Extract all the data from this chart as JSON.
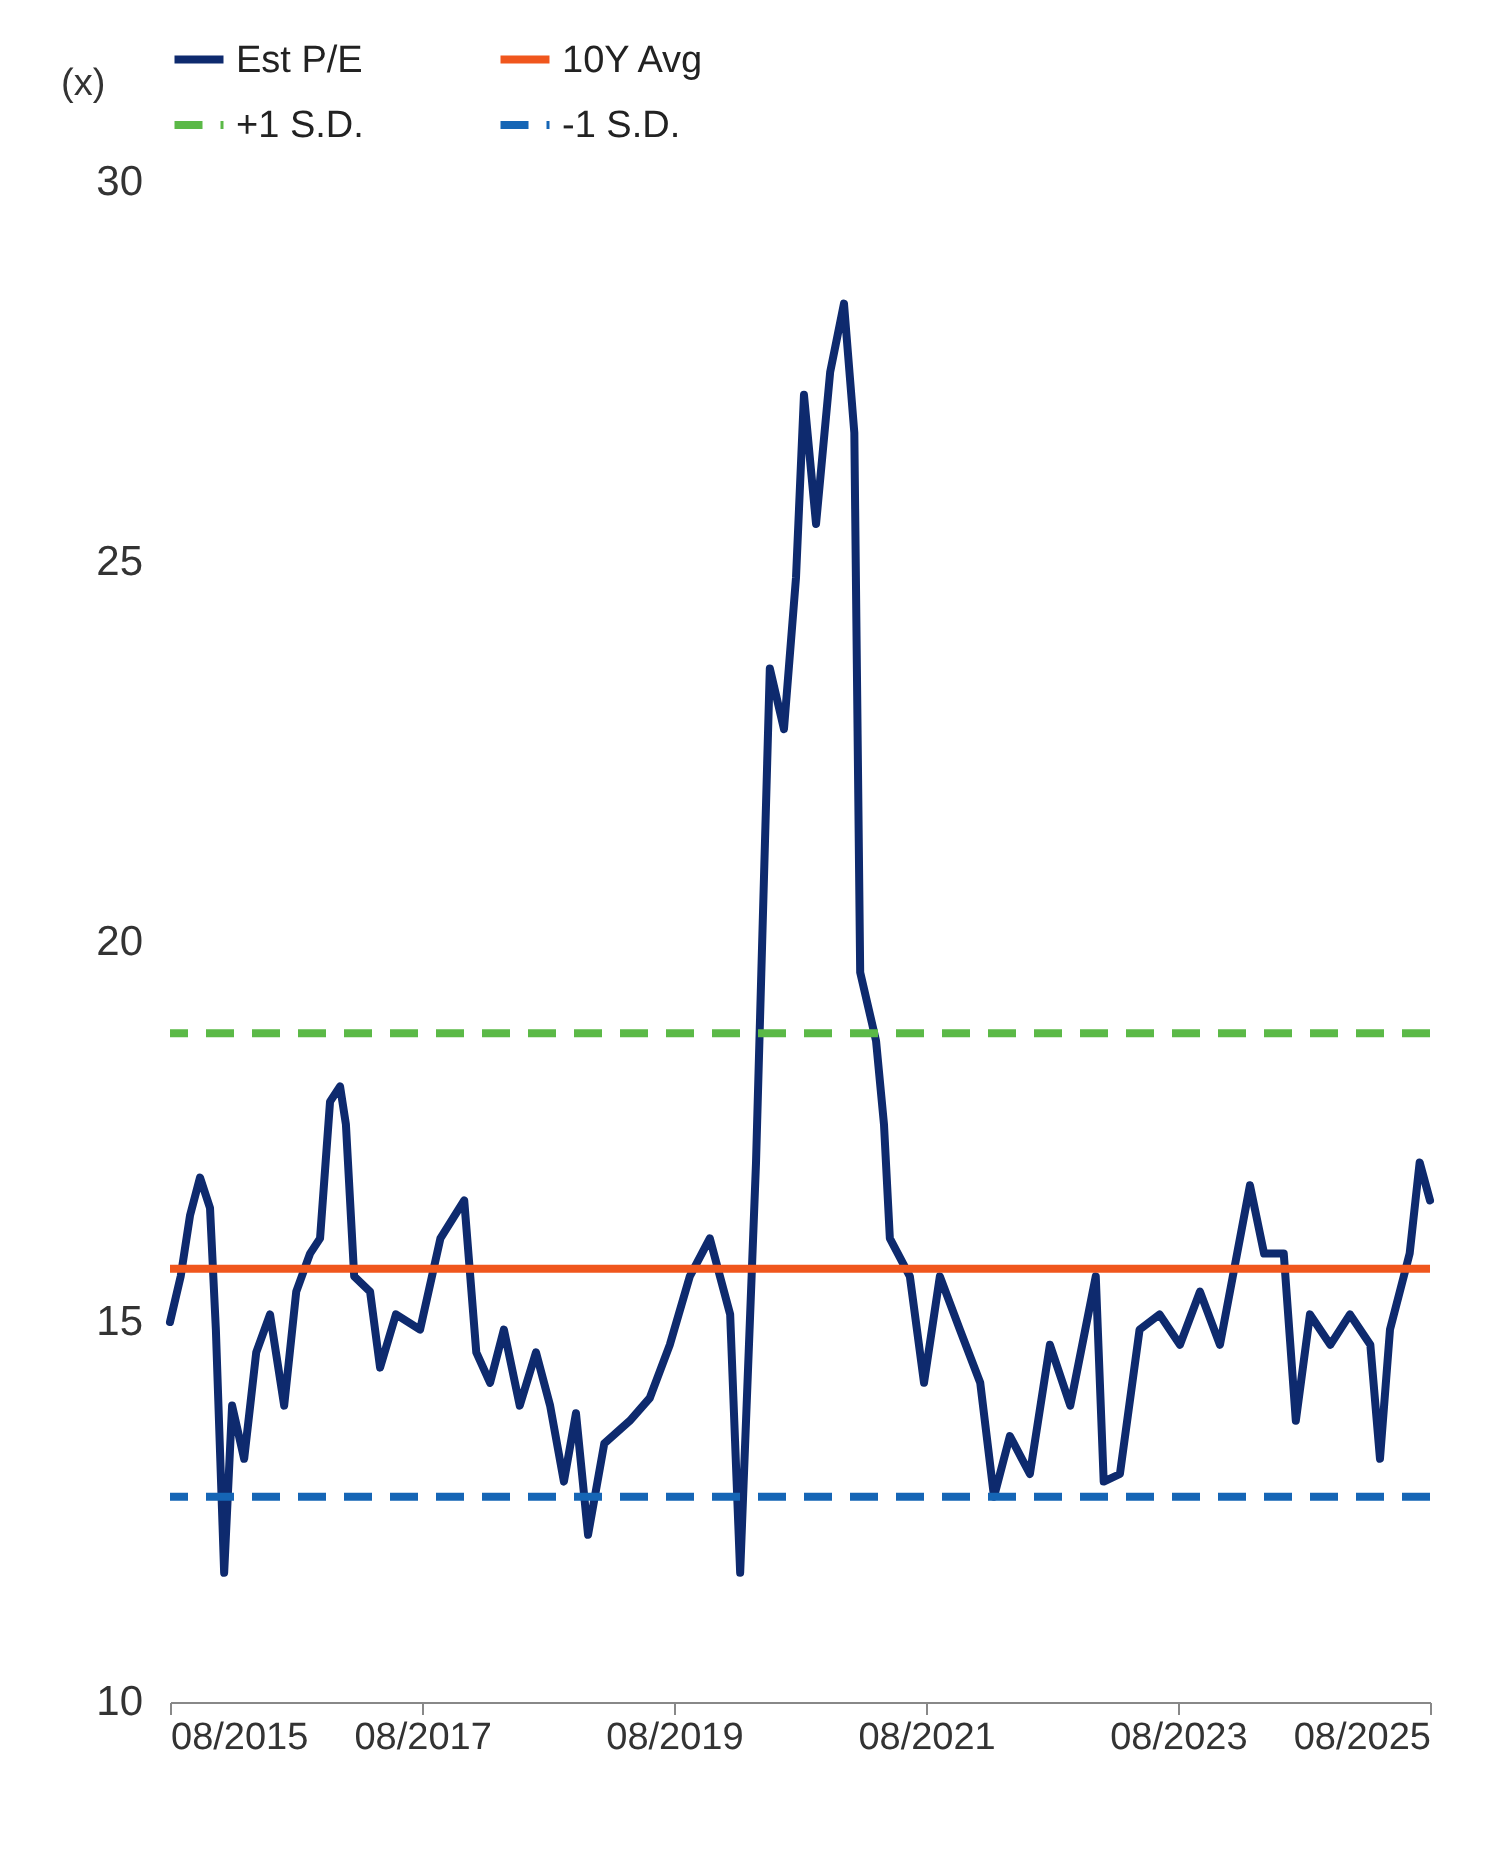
{
  "chart_data": {
    "type": "line",
    "ylabel": "(x)",
    "x": [
      "2015-08-01",
      "2015-09-01",
      "2015-09-28",
      "2015-10-27",
      "2015-11-25",
      "2015-12-12",
      "2016-01-05",
      "2016-01-28",
      "2016-03-03",
      "2016-04-07",
      "2016-05-17",
      "2016-06-27",
      "2016-08-01",
      "2016-09-10",
      "2016-10-09",
      "2016-11-07",
      "2016-12-06",
      "2016-12-23",
      "2017-01-16",
      "2017-03-03",
      "2017-04-01",
      "2017-05-17",
      "2017-07-26",
      "2017-09-23",
      "2017-12-01",
      "2018-01-05",
      "2018-02-14",
      "2018-03-26",
      "2018-05-11",
      "2018-06-27",
      "2018-08-07",
      "2018-09-16",
      "2018-10-21",
      "2018-11-25",
      "2019-01-11",
      "2019-03-26",
      "2019-05-23",
      "2019-07-20",
      "2019-09-16",
      "2019-11-13",
      "2020-01-11",
      "2020-02-09",
      "2020-03-26",
      "2020-05-05",
      "2020-06-15",
      "2020-07-20",
      "2020-08-12",
      "2020-09-16",
      "2020-10-27",
      "2020-12-06",
      "2021-01-05",
      "2021-01-22",
      "2021-03-09",
      "2021-04-01",
      "2021-04-18",
      "2021-06-15",
      "2021-07-26",
      "2021-09-10",
      "2021-11-07",
      "2022-01-05",
      "2022-02-14",
      "2022-04-01",
      "2022-05-29",
      "2022-07-26",
      "2022-09-23",
      "2022-12-06",
      "2022-12-29",
      "2023-02-14",
      "2023-04-12",
      "2023-06-09",
      "2023-08-07",
      "2023-10-04",
      "2023-12-01",
      "2024-01-28",
      "2024-02-26",
      "2024-04-07",
      "2024-06-03",
      "2024-07-08",
      "2024-08-18",
      "2024-10-16",
      "2024-12-12",
      "2025-02-09",
      "2025-03-09",
      "2025-04-07",
      "2025-06-03",
      "2025-07-02",
      "2025-08-01"
    ],
    "series": [
      {
        "name": "Est P/E",
        "color": "#0e2a6e",
        "values": [
          15.0,
          15.6,
          16.4,
          16.9,
          16.5,
          14.9,
          11.7,
          13.9,
          13.2,
          14.6,
          15.1,
          13.9,
          15.4,
          15.9,
          16.1,
          17.9,
          18.1,
          17.6,
          15.6,
          15.4,
          14.4,
          15.1,
          14.9,
          16.1,
          16.6,
          14.6,
          14.2,
          14.9,
          13.9,
          14.6,
          13.9,
          12.9,
          13.8,
          12.2,
          13.4,
          13.7,
          14.0,
          14.7,
          15.6,
          16.1,
          15.1,
          11.7,
          17.1,
          23.6,
          22.8,
          24.8,
          27.2,
          25.5,
          27.5,
          28.4,
          26.7,
          19.6,
          18.7,
          17.6,
          16.1,
          15.6,
          14.2,
          15.6,
          14.9,
          14.2,
          12.7,
          13.5,
          13.0,
          14.7,
          13.9,
          15.6,
          12.9,
          13.0,
          14.9,
          15.1,
          14.7,
          15.4,
          14.7,
          16.1,
          16.8,
          15.9,
          15.9,
          13.7,
          15.1,
          14.7,
          15.1,
          14.7,
          13.2,
          14.9,
          15.9,
          17.1,
          16.6
        ]
      }
    ],
    "ref_lines": [
      {
        "axis": "y",
        "value": 15.7,
        "label": "10Y Avg",
        "color": "#f0561d",
        "line_style": "solid"
      },
      {
        "axis": "y",
        "value": 18.8,
        "label": "+1 S.D.",
        "color": "#5bb947",
        "line_style": "dashed"
      },
      {
        "axis": "y",
        "value": 12.7,
        "label": "-1 S.D.",
        "color": "#1565b5",
        "line_style": "dashed"
      }
    ],
    "xlim": [
      "2015-08-01",
      "2025-08-01"
    ],
    "xticks": [
      {
        "value": "2015-08-01",
        "label": "08/2015"
      },
      {
        "value": "2017-08-01",
        "label": "08/2017"
      },
      {
        "value": "2019-08-01",
        "label": "08/2019"
      },
      {
        "value": "2021-08-01",
        "label": "08/2021"
      },
      {
        "value": "2023-08-01",
        "label": "08/2023"
      },
      {
        "value": "2025-08-01",
        "label": "08/2025"
      }
    ],
    "ylim": [
      10,
      30
    ],
    "yticks": [
      10,
      15,
      20,
      25,
      30
    ],
    "grid": false,
    "legend": "top",
    "marker": "none",
    "line_style": "solid"
  }
}
